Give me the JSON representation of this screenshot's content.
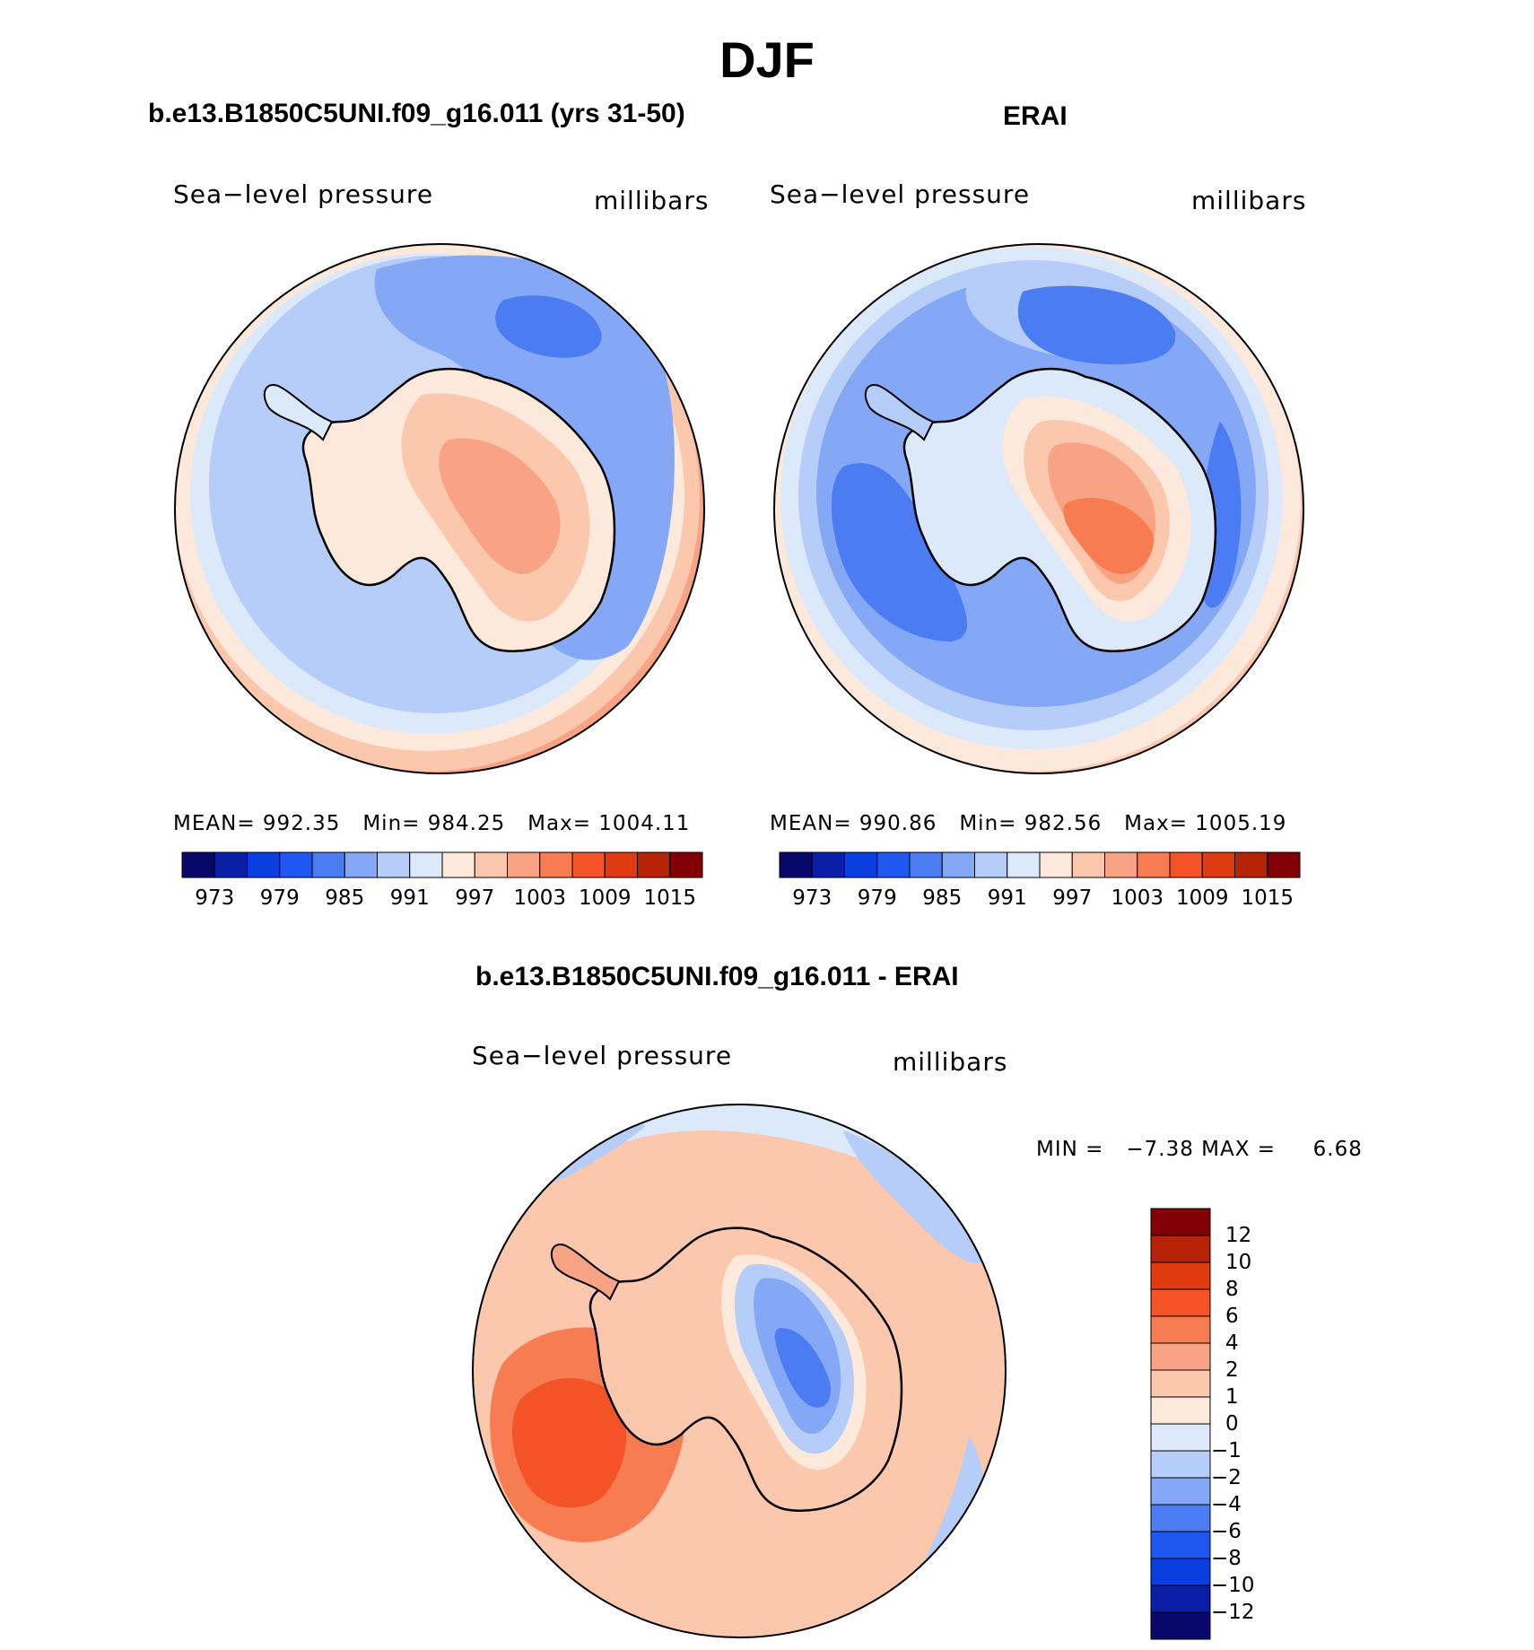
{
  "season": "DJF",
  "colors": {
    "abs_scale": [
      "#08086b",
      "#0a1fa6",
      "#0a3ee0",
      "#1f58ef",
      "#4b7cf2",
      "#85a8f6",
      "#b5cdf8",
      "#dce9fa",
      "#fde8dc",
      "#fbc8ae",
      "#f8a484",
      "#f87c52",
      "#f35327",
      "#e03a10",
      "#b52205",
      "#820005"
    ],
    "diff_scale": [
      "#08086b",
      "#0a1fa6",
      "#0a3ee0",
      "#1f58ef",
      "#4b7cf2",
      "#85a8f6",
      "#b5cdf8",
      "#dce9fa",
      "#fde8dc",
      "#fbc8ae",
      "#f8a484",
      "#f87c52",
      "#f35327",
      "#e03a10",
      "#b52205",
      "#820005"
    ]
  },
  "panels": [
    {
      "title": "b.e13.B1850C5UNI.f09_g16.011 (yrs 31-50)",
      "variable": "Sea−level pressure",
      "units": "millibars",
      "stats": {
        "mean_label": "MEAN=",
        "mean": "992.35",
        "min_label": "Min=",
        "min": "984.25",
        "max_label": "Max=",
        "max": "1004.11"
      },
      "colorbar_ticks": [
        "973",
        "979",
        "985",
        "991",
        "997",
        "1003",
        "1009",
        "1015"
      ]
    },
    {
      "title": "ERAI",
      "variable": "Sea−level pressure",
      "units": "millibars",
      "stats": {
        "mean_label": "MEAN=",
        "mean": "990.86",
        "min_label": "Min=",
        "min": "982.56",
        "max_label": "Max=",
        "max": "1005.19"
      },
      "colorbar_ticks": [
        "973",
        "979",
        "985",
        "991",
        "997",
        "1003",
        "1009",
        "1015"
      ]
    }
  ],
  "difference": {
    "title": "b.e13.B1850C5UNI.f09_g16.011 - ERAI",
    "variable": "Sea−level pressure",
    "units": "millibars",
    "stats": {
      "min_label": "MIN =",
      "min": "−7.38",
      "max_label": "MAX =",
      "max": "6.68"
    },
    "colorbar_ticks": [
      "12",
      "10",
      "8",
      "6",
      "4",
      "2",
      "1",
      "0",
      "−1",
      "−2",
      "−4",
      "−6",
      "−8",
      "−10",
      "−12"
    ]
  }
}
